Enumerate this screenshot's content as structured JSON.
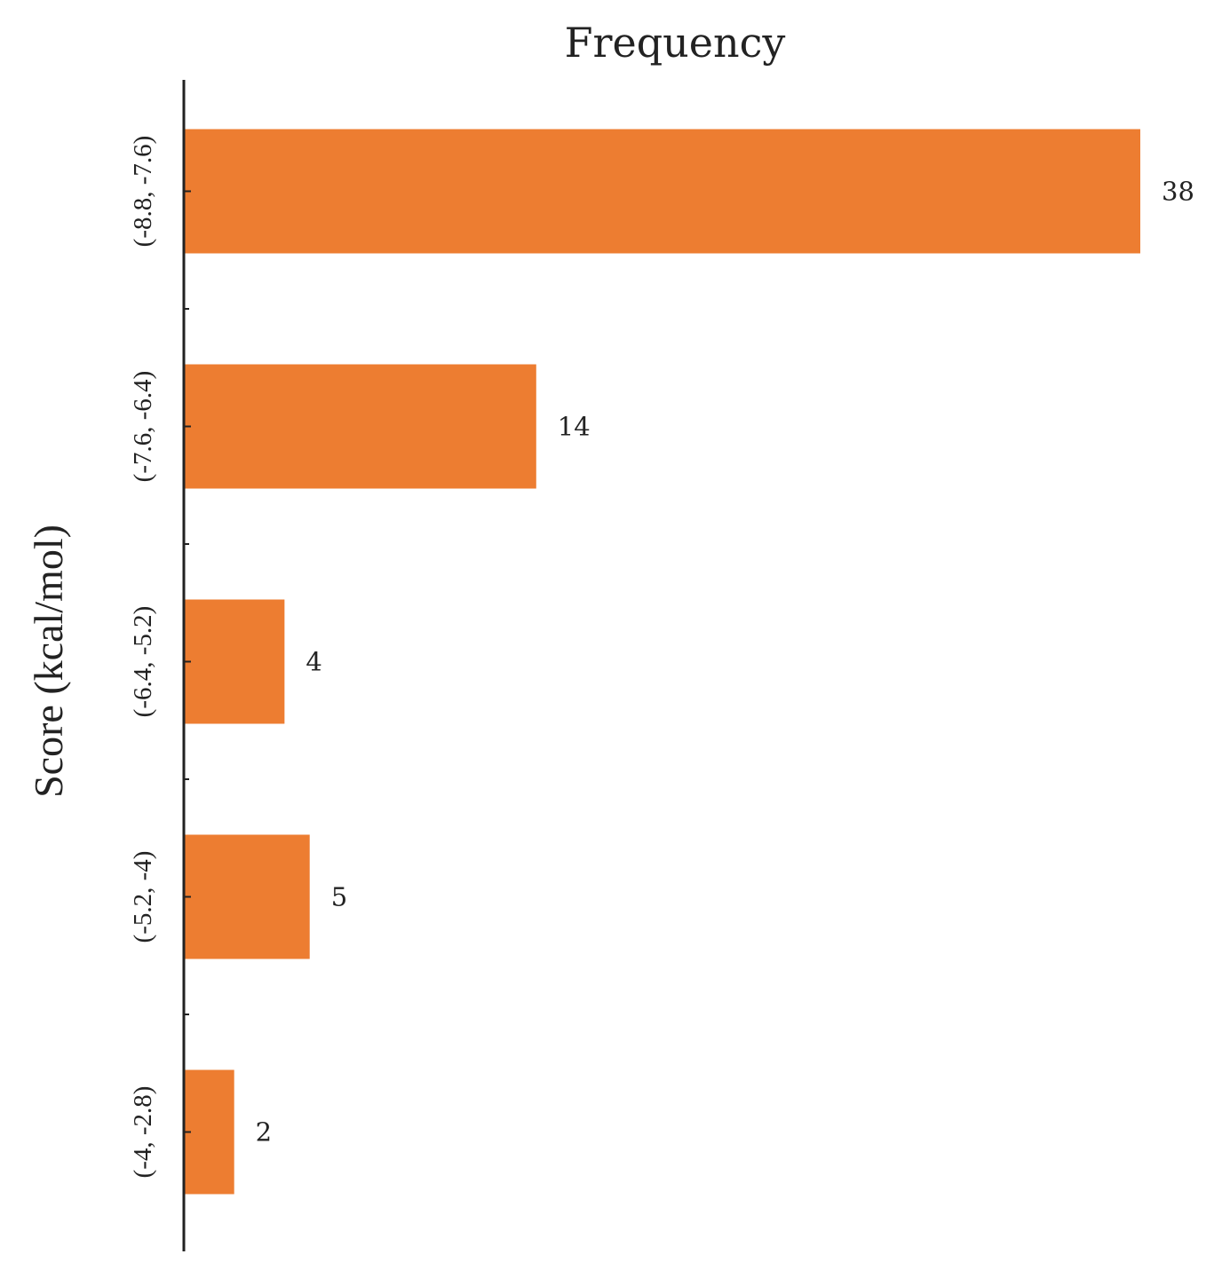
{
  "chart_data": {
    "type": "bar",
    "orientation": "horizontal",
    "xlabel": "Frequency",
    "xlabel_position": "top",
    "ylabel": "Score (kcal/mol)",
    "categories": [
      "(-8.8, -7.6)",
      "(-7.6, -6.4)",
      "(-6.4, -5.2)",
      "(-5.2, -4)",
      "(-4, -2.8)"
    ],
    "values": [
      38,
      14,
      4,
      5,
      2
    ],
    "xlim": [
      0,
      38
    ],
    "data_labels": true,
    "grid": false,
    "legend": "none",
    "bar_color": "#ED7D31",
    "axis_color": "#222222"
  }
}
